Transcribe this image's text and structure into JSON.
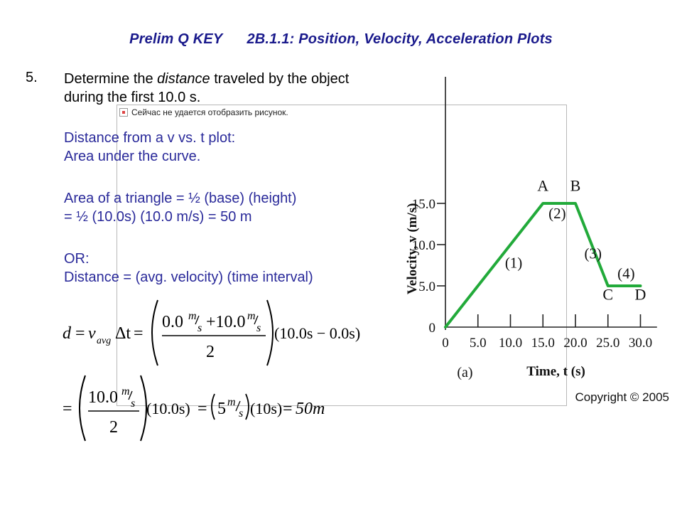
{
  "header": {
    "left": "Prelim Q KEY",
    "right": "2B.1.1: Position, Velocity, Acceleration Plots"
  },
  "question": {
    "number": "5.",
    "text_before": "Determine the ",
    "text_emph": "distance",
    "text_after": " traveled by the object during the first 10.0 s."
  },
  "answer": {
    "line1": "Distance from a v vs. t plot:",
    "line2": "Area under the curve.",
    "line3": "Area of a triangle = ½ (base) (height)",
    "line4": "= ½ (10.0s) (10.0 m/s) = 50 m",
    "line5": "OR:",
    "line6": "Distance = (avg. velocity) (time interval)"
  },
  "broken_image": {
    "label": "Сейчас не удается отобразить рисунок."
  },
  "equation1": {
    "d": "d",
    "eq": "=",
    "v": "v",
    "sub": "avg",
    "delta_t": "Δt",
    "eq2": "=",
    "num_a": "0.0",
    "num_b": "+10.0",
    "unit_m": "m",
    "unit_s": "s",
    "den": "2",
    "time": "(10.0s − 0.0s)"
  },
  "equation2": {
    "eq": "=",
    "num": "10.0",
    "unit_m": "m",
    "unit_s": "s",
    "den": "2",
    "time1": "(10.0s)",
    "eq2": "=",
    "five": "5",
    "unit_m2": "m",
    "unit_s2": "s",
    "time2": "(10s)",
    "eq3": "=",
    "result": "50m"
  },
  "chart_data": {
    "type": "line",
    "x": [
      0,
      15.0,
      20.0,
      25.0,
      30.0
    ],
    "y": [
      0,
      15.0,
      15.0,
      5.0,
      5.0
    ],
    "xlim": [
      0,
      32
    ],
    "ylim": [
      0,
      18
    ],
    "x_ticks": [
      "0",
      "5.0",
      "10.0",
      "15.0",
      "20.0",
      "25.0",
      "30.0"
    ],
    "x_tick_values": [
      0,
      5,
      10,
      15,
      20,
      25,
      30
    ],
    "y_ticks": [
      "0",
      "5.0",
      "10.0",
      "15.0"
    ],
    "y_tick_values": [
      0,
      5,
      10,
      15
    ],
    "xlabel": "Time, t (s)",
    "ylabel": "Velocity, v (m/s)",
    "panel_label": "(a)",
    "point_labels": [
      {
        "text": "A",
        "x": 15.0,
        "y": 16.5
      },
      {
        "text": "B",
        "x": 20.0,
        "y": 16.5
      },
      {
        "text": "C",
        "x": 25.0,
        "y": 3.3
      },
      {
        "text": "D",
        "x": 30.0,
        "y": 3.3
      }
    ],
    "segment_labels": [
      {
        "text": "(1)",
        "x": 10.5,
        "y": 7.2
      },
      {
        "text": "(2)",
        "x": 17.2,
        "y": 13.2
      },
      {
        "text": "(3)",
        "x": 22.7,
        "y": 8.3
      },
      {
        "text": "(4)",
        "x": 27.8,
        "y": 5.9
      }
    ],
    "copyright": "Copyright © 2005",
    "line_color": "#22aa3a"
  }
}
